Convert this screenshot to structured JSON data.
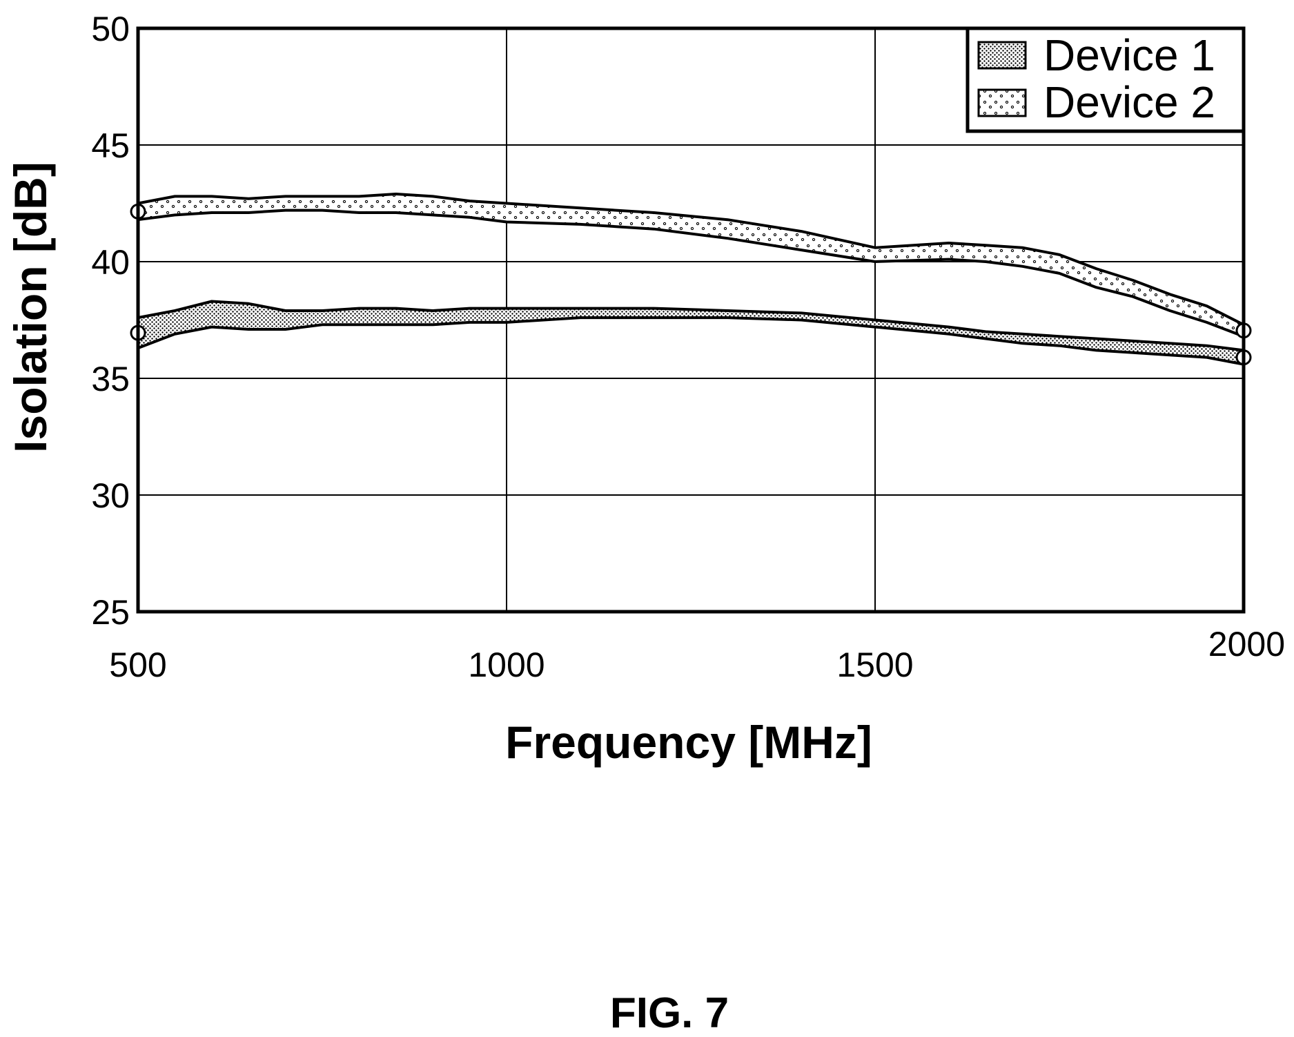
{
  "chart_data": {
    "type": "area",
    "title": "",
    "xlabel": "Frequency [MHz]",
    "ylabel": "Isolation [dB]",
    "xlim": [
      500,
      2000
    ],
    "ylim": [
      25,
      50
    ],
    "x_ticks": [
      500,
      1000,
      1500,
      2000
    ],
    "y_ticks": [
      25,
      30,
      35,
      40,
      45,
      50
    ],
    "grid": true,
    "legend_position": "top-right",
    "x": [
      500,
      550,
      600,
      650,
      700,
      750,
      800,
      850,
      900,
      950,
      1000,
      1100,
      1200,
      1300,
      1400,
      1500,
      1600,
      1650,
      1700,
      1750,
      1800,
      1850,
      1900,
      1950,
      2000
    ],
    "series": [
      {
        "name": "Device 1",
        "fill_pattern": "dense-dots",
        "upper": [
          37.6,
          37.9,
          38.3,
          38.2,
          37.9,
          37.9,
          38.0,
          38.0,
          37.9,
          38.0,
          38.0,
          38.0,
          38.0,
          37.9,
          37.8,
          37.5,
          37.2,
          37.0,
          36.9,
          36.8,
          36.7,
          36.6,
          36.5,
          36.4,
          36.2
        ],
        "lower": [
          36.3,
          36.9,
          37.2,
          37.1,
          37.1,
          37.3,
          37.3,
          37.3,
          37.3,
          37.4,
          37.4,
          37.6,
          37.6,
          37.6,
          37.5,
          37.2,
          36.9,
          36.7,
          36.5,
          36.4,
          36.2,
          36.1,
          36.0,
          35.9,
          35.6
        ]
      },
      {
        "name": "Device 2",
        "fill_pattern": "sparse-dots",
        "upper": [
          42.5,
          42.8,
          42.8,
          42.7,
          42.8,
          42.8,
          42.8,
          42.9,
          42.8,
          42.6,
          42.5,
          42.3,
          42.1,
          41.8,
          41.3,
          40.6,
          40.8,
          40.7,
          40.6,
          40.3,
          39.7,
          39.2,
          38.6,
          38.1,
          37.3
        ],
        "lower": [
          41.8,
          42.0,
          42.1,
          42.1,
          42.2,
          42.2,
          42.1,
          42.1,
          42.0,
          41.9,
          41.7,
          41.6,
          41.4,
          41.0,
          40.5,
          40.0,
          40.1,
          40.0,
          39.8,
          39.5,
          38.9,
          38.5,
          37.9,
          37.4,
          36.8
        ]
      }
    ]
  },
  "caption": "FIG. 7",
  "colors": {
    "line": "#000000",
    "grid": "#000000",
    "background": "#ffffff"
  }
}
